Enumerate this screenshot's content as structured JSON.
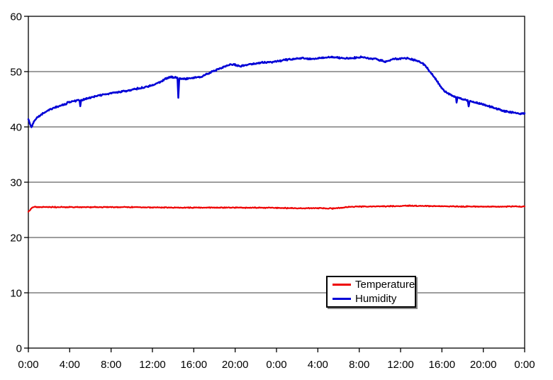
{
  "chart_data": {
    "type": "line",
    "title": "",
    "xlabel": "",
    "ylabel": "",
    "x_axis": {
      "unit": "time (h:mm), two consecutive days",
      "range_hours": [
        0,
        48
      ],
      "tick_interval_hours": 4,
      "tick_labels": [
        "0:00",
        "4:00",
        "8:00",
        "12:00",
        "16:00",
        "20:00",
        "0:00",
        "4:00",
        "8:00",
        "12:00",
        "16:00",
        "20:00",
        "0:00"
      ]
    },
    "y_axis": {
      "range": [
        0,
        60
      ],
      "tick_values": [
        0,
        10,
        20,
        30,
        40,
        50,
        60
      ],
      "tick_labels": [
        "0",
        "10",
        "20",
        "30",
        "40",
        "50",
        "60"
      ]
    },
    "grid": {
      "horizontal_at": [
        10,
        20,
        30,
        40,
        50
      ],
      "vertical": false
    },
    "legend": {
      "position": "inside-bottom-right",
      "entries": [
        {
          "label": "Temperature",
          "color": "#ee0000"
        },
        {
          "label": "Humidity",
          "color": "#0000d6"
        }
      ]
    },
    "series": [
      {
        "name": "Temperature",
        "color": "#ee0000",
        "points": [
          [
            0,
            24.6
          ],
          [
            0.15,
            24.9
          ],
          [
            0.35,
            25.4
          ],
          [
            0.7,
            25.5
          ],
          [
            2,
            25.5
          ],
          [
            4,
            25.5
          ],
          [
            6,
            25.5
          ],
          [
            8,
            25.5
          ],
          [
            10,
            25.5
          ],
          [
            12,
            25.45
          ],
          [
            14,
            25.4
          ],
          [
            16,
            25.4
          ],
          [
            18,
            25.4
          ],
          [
            20,
            25.4
          ],
          [
            22,
            25.4
          ],
          [
            24,
            25.35
          ],
          [
            26,
            25.3
          ],
          [
            28,
            25.3
          ],
          [
            29.5,
            25.25
          ],
          [
            30.5,
            25.4
          ],
          [
            31,
            25.55
          ],
          [
            32,
            25.6
          ],
          [
            33,
            25.6
          ],
          [
            34,
            25.65
          ],
          [
            35,
            25.65
          ],
          [
            36,
            25.7
          ],
          [
            36.8,
            25.75
          ],
          [
            37.5,
            25.75
          ],
          [
            38.5,
            25.7
          ],
          [
            40,
            25.65
          ],
          [
            42,
            25.6
          ],
          [
            44,
            25.6
          ],
          [
            46,
            25.6
          ],
          [
            48,
            25.6
          ]
        ]
      },
      {
        "name": "Humidity",
        "color": "#0000d6",
        "points": [
          [
            0,
            41.5
          ],
          [
            0.12,
            40.7
          ],
          [
            0.3,
            40.0
          ],
          [
            0.5,
            40.8
          ],
          [
            0.8,
            41.6
          ],
          [
            1.4,
            42.5
          ],
          [
            2,
            43.1
          ],
          [
            2.7,
            43.6
          ],
          [
            3.5,
            44.1
          ],
          [
            4,
            44.5
          ],
          [
            4.5,
            44.7
          ],
          [
            4.96,
            44.8
          ],
          [
            5.02,
            43.7
          ],
          [
            5.1,
            44.8
          ],
          [
            6,
            45.3
          ],
          [
            7,
            45.7
          ],
          [
            8,
            46.1
          ],
          [
            9,
            46.4
          ],
          [
            10,
            46.7
          ],
          [
            11,
            47.1
          ],
          [
            12,
            47.5
          ],
          [
            12.7,
            48.1
          ],
          [
            13.3,
            48.7
          ],
          [
            13.8,
            49.0
          ],
          [
            14.2,
            49.0
          ],
          [
            14.42,
            48.8
          ],
          [
            14.5,
            45.2
          ],
          [
            14.6,
            48.7
          ],
          [
            15.2,
            48.7
          ],
          [
            16,
            48.9
          ],
          [
            16.6,
            49.0
          ],
          [
            17,
            49.3
          ],
          [
            17.6,
            49.8
          ],
          [
            18.2,
            50.3
          ],
          [
            18.8,
            50.8
          ],
          [
            19.4,
            51.2
          ],
          [
            19.9,
            51.3
          ],
          [
            20.4,
            51.0
          ],
          [
            20.9,
            51.1
          ],
          [
            21.6,
            51.4
          ],
          [
            22.4,
            51.6
          ],
          [
            23.2,
            51.7
          ],
          [
            24,
            51.8
          ],
          [
            24.8,
            52.1
          ],
          [
            25.6,
            52.3
          ],
          [
            26.5,
            52.4
          ],
          [
            27.3,
            52.3
          ],
          [
            28,
            52.4
          ],
          [
            28.8,
            52.5
          ],
          [
            29.3,
            52.6
          ],
          [
            30,
            52.5
          ],
          [
            30.8,
            52.4
          ],
          [
            31.6,
            52.5
          ],
          [
            32.2,
            52.6
          ],
          [
            32.8,
            52.4
          ],
          [
            33.6,
            52.3
          ],
          [
            34.2,
            52.0
          ],
          [
            34.5,
            51.7
          ],
          [
            34.9,
            52.0
          ],
          [
            35.4,
            52.3
          ],
          [
            36,
            52.4
          ],
          [
            36.6,
            52.4
          ],
          [
            37.2,
            52.2
          ],
          [
            37.8,
            51.8
          ],
          [
            38.2,
            51.4
          ],
          [
            38.6,
            50.6
          ],
          [
            39,
            49.6
          ],
          [
            39.4,
            48.6
          ],
          [
            39.8,
            47.5
          ],
          [
            40.2,
            46.5
          ],
          [
            40.7,
            45.9
          ],
          [
            41.2,
            45.5
          ],
          [
            41.36,
            45.4
          ],
          [
            41.42,
            44.4
          ],
          [
            41.5,
            45.3
          ],
          [
            42,
            45.0
          ],
          [
            42.5,
            44.8
          ],
          [
            42.58,
            43.6
          ],
          [
            42.68,
            44.7
          ],
          [
            43.2,
            44.4
          ],
          [
            44,
            44.1
          ],
          [
            44.8,
            43.6
          ],
          [
            45.4,
            43.2
          ],
          [
            46,
            42.9
          ],
          [
            46.6,
            42.7
          ],
          [
            47.2,
            42.5
          ],
          [
            47.7,
            42.4
          ],
          [
            48,
            42.4
          ]
        ]
      }
    ]
  },
  "colors": {
    "background": "#ffffff",
    "plot_border": "#000000",
    "gridline": "#3c3c3c",
    "axis_text": "#000000",
    "legend_border": "#000000",
    "legend_shadow": "#8a8a8a"
  }
}
